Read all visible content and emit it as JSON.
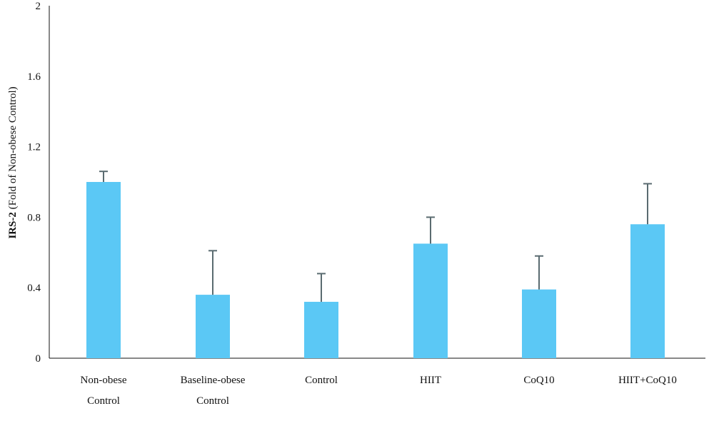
{
  "chart_data": {
    "type": "bar",
    "title": "",
    "xlabel": "",
    "ylabel_bold": "IRS-2",
    "ylabel_rest": " (Fold of Non-obese Control)",
    "ylim": [
      0,
      2
    ],
    "yticks": [
      "0",
      "0.4",
      "0.8",
      "1.2",
      "1.6",
      "2"
    ],
    "ytick_values": [
      0,
      0.4,
      0.8,
      1.2,
      1.6,
      2
    ],
    "categories": [
      [
        "Non-obese",
        "Control"
      ],
      [
        "Baseline-obese",
        "Control"
      ],
      [
        "Control"
      ],
      [
        "HIIT"
      ],
      [
        "CoQ10"
      ],
      [
        "HIIT+CoQ10"
      ]
    ],
    "values": [
      1.0,
      0.36,
      0.32,
      0.65,
      0.39,
      0.76
    ],
    "errors": [
      0.06,
      0.25,
      0.16,
      0.15,
      0.19,
      0.23
    ],
    "grid": false,
    "bar_color": "#5bc8f5",
    "error_color": "#5a6b70"
  }
}
